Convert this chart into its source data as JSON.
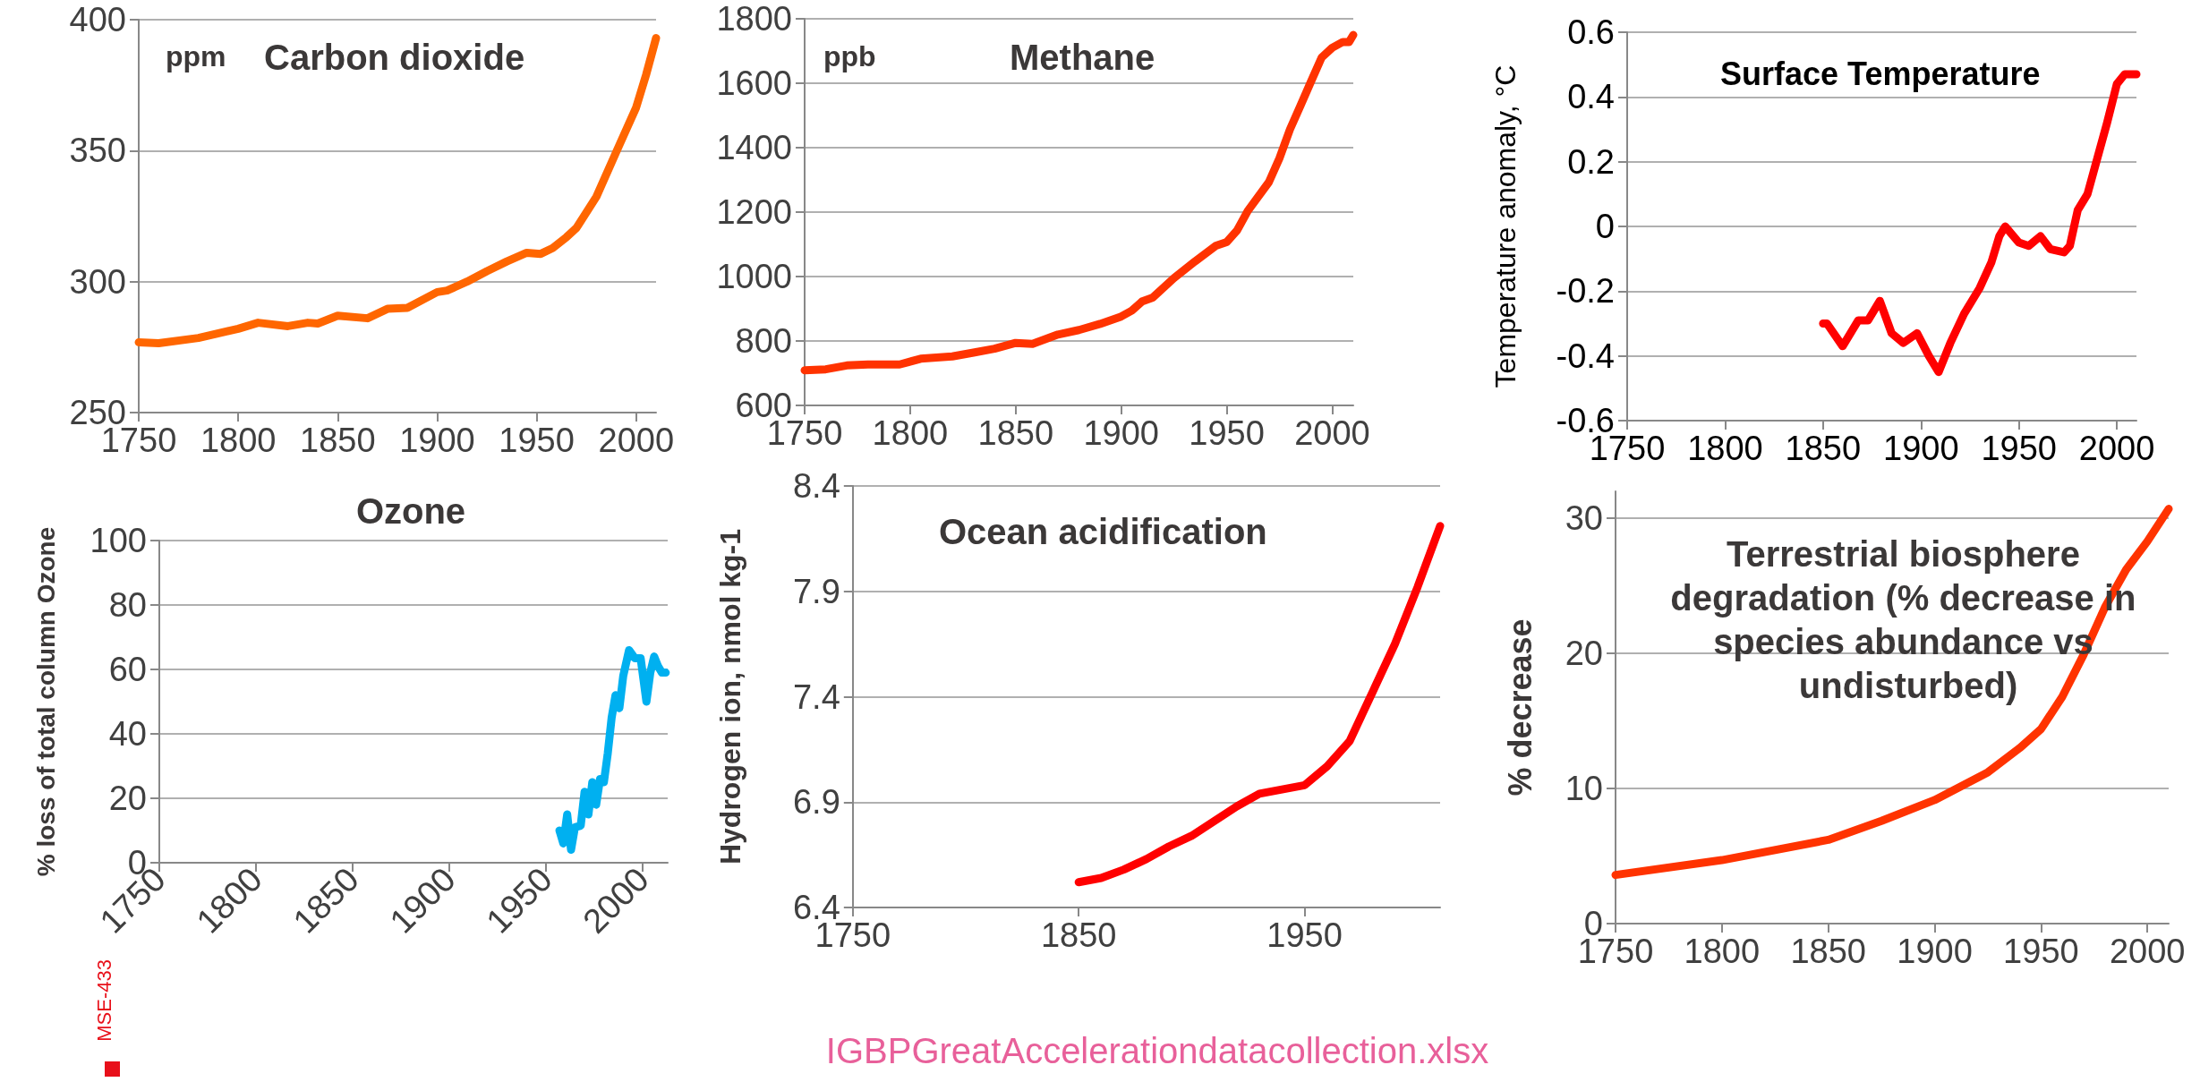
{
  "chart_data": [
    {
      "type": "line",
      "title": "Carbon dioxide",
      "ylabel": "ppm",
      "grid": "y",
      "marker": "none",
      "xlim": [
        1750,
        2010
      ],
      "xticks": [
        1750,
        1800,
        1850,
        1900,
        1950,
        2000
      ],
      "ylim": [
        250,
        400
      ],
      "yticks": [
        250,
        300,
        350,
        400
      ],
      "x": [
        1750,
        1760,
        1780,
        1800,
        1810,
        1825,
        1835,
        1840,
        1850,
        1865,
        1875,
        1885,
        1900,
        1905,
        1915,
        1925,
        1935,
        1945,
        1952,
        1958,
        1965,
        1970,
        1980,
        1990,
        2000,
        2005,
        2010
      ],
      "series": [
        {
          "color": "#ff6600",
          "values": [
            276.8,
            276.5,
            278.5,
            282,
            284.3,
            283,
            284.3,
            284,
            287,
            286,
            289.6,
            290,
            296,
            296.6,
            300,
            304,
            307.7,
            311,
            310.6,
            312.8,
            317,
            320.5,
            332.4,
            349.5,
            366.5,
            379,
            393
          ]
        }
      ]
    },
    {
      "type": "line",
      "title": "Methane",
      "ylabel": "ppb",
      "grid": "y",
      "marker": "none",
      "xlim": [
        1750,
        2010
      ],
      "xticks": [
        1750,
        1800,
        1850,
        1900,
        1950,
        2000
      ],
      "ylim": [
        600,
        1800
      ],
      "yticks": [
        600,
        800,
        1000,
        1200,
        1400,
        1600,
        1800
      ],
      "x": [
        1750,
        1760,
        1770,
        1780,
        1795,
        1805,
        1820,
        1830,
        1840,
        1850,
        1858,
        1870,
        1880,
        1890,
        1900,
        1905,
        1910,
        1915,
        1925,
        1935,
        1945,
        1950,
        1955,
        1960,
        1970,
        1975,
        1980,
        1985,
        1990,
        1995,
        2000,
        2005,
        2008,
        2010
      ],
      "series": [
        {
          "color": "#ff3300",
          "values": [
            709,
            712,
            724,
            727,
            727,
            745,
            752,
            764,
            776,
            794,
            791,
            820,
            834,
            853,
            876,
            894,
            923,
            935,
            995,
            1047,
            1096,
            1107,
            1144,
            1204,
            1293,
            1367,
            1457,
            1531,
            1606,
            1680,
            1710,
            1728,
            1728,
            1750
          ]
        }
      ]
    },
    {
      "type": "line",
      "title": "Surface Temperature",
      "ylabel": "Temperature anomaly, °C",
      "grid": "y",
      "marker": "none",
      "xlim": [
        1750,
        2010
      ],
      "xticks": [
        1750,
        1800,
        1850,
        1900,
        1950,
        2000
      ],
      "ylim": [
        -0.6,
        0.6
      ],
      "yticks": [
        -0.6,
        -0.4,
        -0.2,
        0,
        0.2,
        0.4,
        0.6
      ],
      "x": [
        1850,
        1852,
        1860,
        1868,
        1873,
        1879,
        1885,
        1891,
        1898,
        1904,
        1909,
        1915,
        1922,
        1930,
        1936,
        1940,
        1943,
        1950,
        1955,
        1961,
        1966,
        1973,
        1976,
        1980,
        1985,
        1990,
        1995,
        2000,
        2004,
        2010
      ],
      "series": [
        {
          "color": "#ff0000",
          "values": [
            -0.3,
            -0.3,
            -0.37,
            -0.29,
            -0.29,
            -0.23,
            -0.33,
            -0.36,
            -0.33,
            -0.4,
            -0.45,
            -0.36,
            -0.27,
            -0.19,
            -0.11,
            -0.03,
            0,
            -0.05,
            -0.06,
            -0.03,
            -0.07,
            -0.08,
            -0.06,
            0.05,
            0.1,
            0.21,
            0.32,
            0.44,
            0.47,
            0.47
          ]
        }
      ]
    },
    {
      "type": "line",
      "title": "Ozone",
      "ylabel": "% loss of total column Ozone",
      "grid": "y",
      "marker": "none",
      "xlim": [
        1750,
        2013
      ],
      "xticks": [
        1750,
        1800,
        1850,
        1900,
        1950,
        2000
      ],
      "ylim": [
        0,
        100
      ],
      "yticks": [
        0,
        20,
        40,
        60,
        80,
        100
      ],
      "x": [
        1957,
        1959,
        1961,
        1963,
        1965,
        1968,
        1970,
        1972,
        1974,
        1976,
        1978,
        1980,
        1982,
        1984,
        1986,
        1988,
        1990,
        1993,
        1996,
        1999,
        2002,
        2004,
        2006,
        2008,
        2010,
        2012
      ],
      "series": [
        {
          "color": "#00b0f0",
          "values": [
            10,
            6,
            15,
            4,
            11,
            11.5,
            22,
            15,
            25,
            18,
            26,
            25,
            34,
            45,
            52,
            48,
            58,
            66,
            63.5,
            63.5,
            50,
            59,
            64,
            61,
            59,
            59
          ]
        }
      ],
      "annotations": [
        "MSE-433"
      ]
    },
    {
      "type": "line",
      "title": "Ocean acidification",
      "ylabel": "Hydrogen ion, nmol kg-1",
      "grid": "y",
      "marker": "none",
      "xlim": [
        1750,
        2010
      ],
      "xticks": [
        1750,
        1850,
        1950
      ],
      "ylim": [
        6.4,
        8.4
      ],
      "yticks": [
        6.4,
        6.9,
        7.4,
        7.9,
        8.4
      ],
      "x": [
        1850,
        1860,
        1870,
        1880,
        1890,
        1900,
        1910,
        1920,
        1930,
        1940,
        1950,
        1960,
        1970,
        1980,
        1990,
        2000,
        2010
      ],
      "series": [
        {
          "color": "#ff0000",
          "values": [
            6.52,
            6.54,
            6.58,
            6.63,
            6.69,
            6.74,
            6.81,
            6.88,
            6.94,
            6.96,
            6.98,
            7.07,
            7.19,
            7.42,
            7.65,
            7.92,
            8.21
          ]
        }
      ],
      "annotations": [
        "IGBPGreatAccelerationdatacollection.xlsx"
      ]
    },
    {
      "type": "line",
      "title": "Terrestrial biosphere degradation (% decrease in species abundance vs undisturbed)",
      "ylabel": "% decrease",
      "grid": "y",
      "marker": "none",
      "xlim": [
        1750,
        2010
      ],
      "xticks": [
        1750,
        1800,
        1850,
        1900,
        1950,
        2000
      ],
      "ylim": [
        0,
        32
      ],
      "yticks": [
        0,
        10,
        20,
        30
      ],
      "x": [
        1750,
        1800,
        1850,
        1875,
        1900,
        1925,
        1940,
        1950,
        1960,
        1970,
        1980,
        1990,
        2000,
        2010
      ],
      "series": [
        {
          "color": "#ff3300",
          "values": [
            3.6,
            4.7,
            6.2,
            7.6,
            9.15,
            11.2,
            13,
            14.4,
            16.8,
            19.9,
            23.4,
            26.2,
            28.3,
            30.7
          ]
        }
      ]
    }
  ]
}
